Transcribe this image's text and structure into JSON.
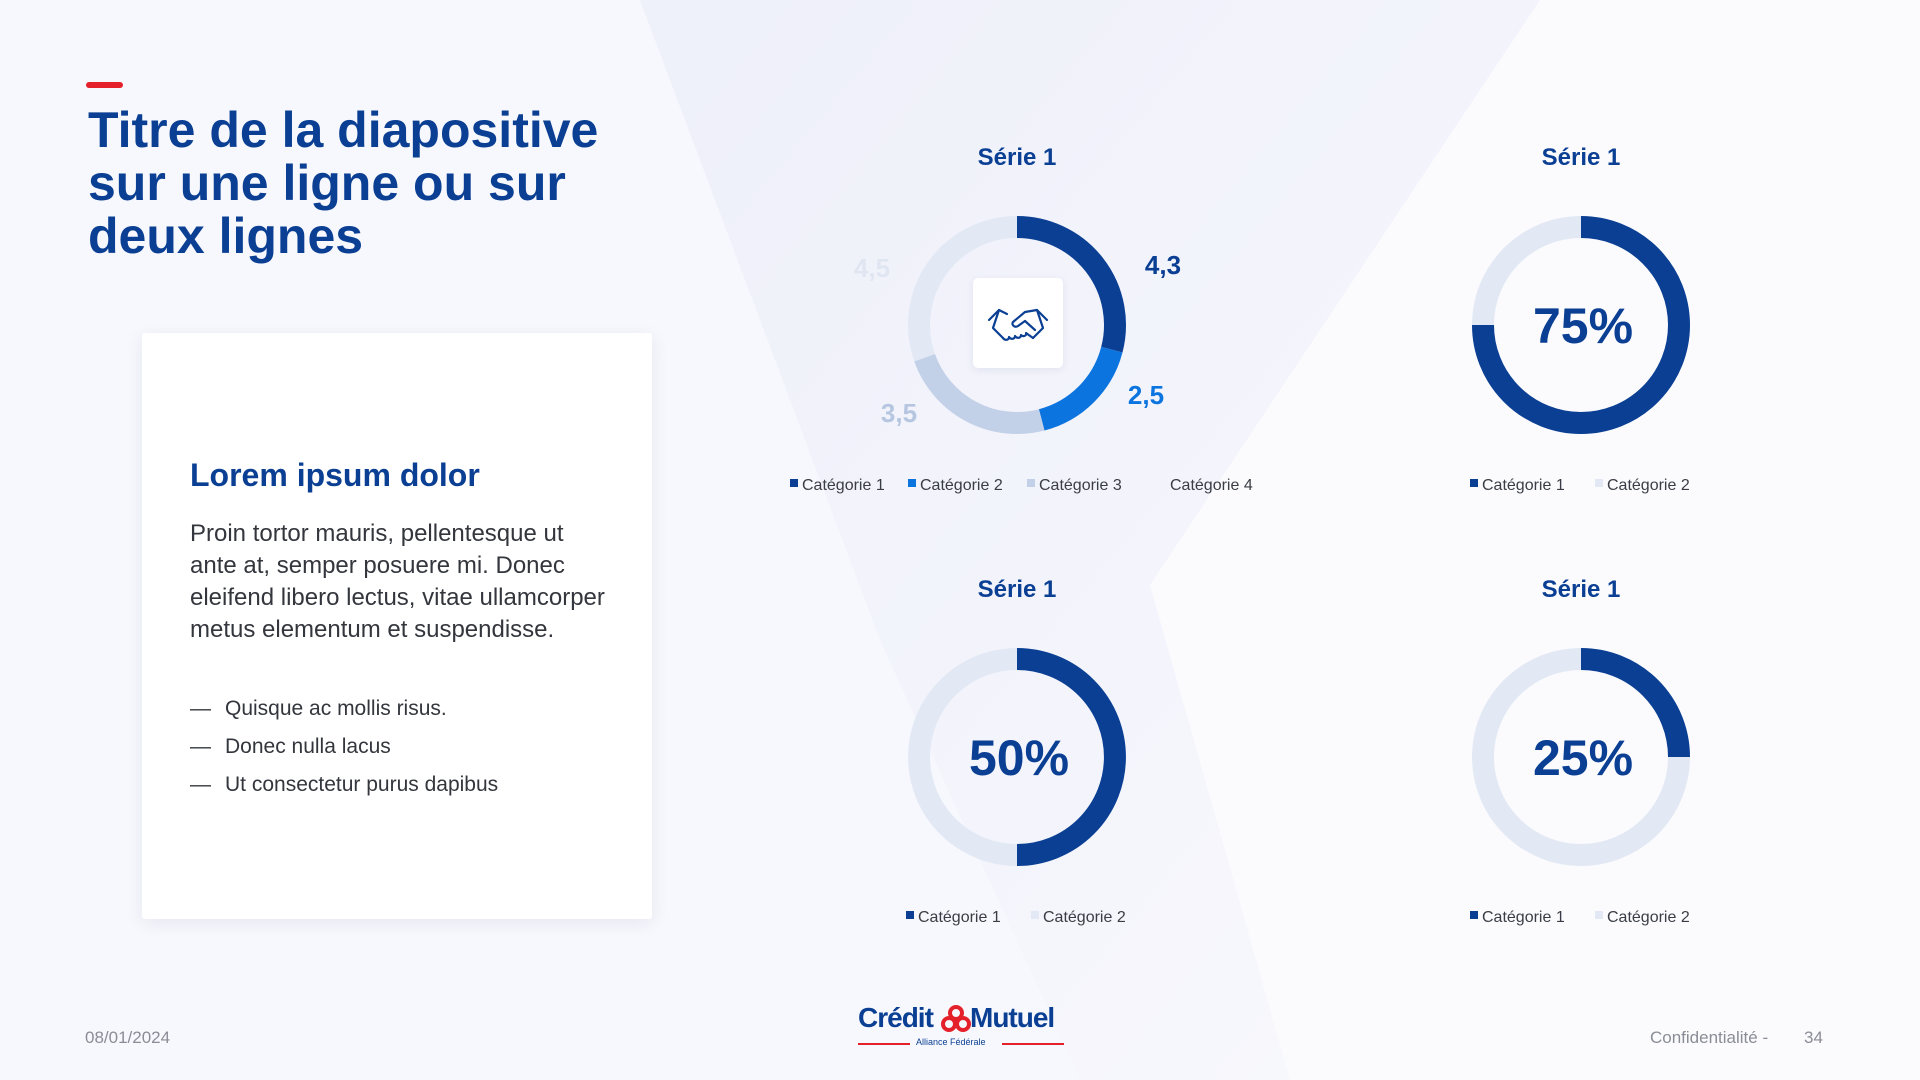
{
  "slide": {
    "title": "Titre de la diapositive sur une ligne ou sur deux lignes",
    "card": {
      "heading": "Lorem ipsum dolor",
      "body": "Proin tortor mauris, pellentesque ut ante at, semper posuere mi. Donec eleifend libero lectus, vitae ullamcorper metus elementum et suspendisse.",
      "bullets": [
        "Quisque ac mollis risus.",
        "Donec nulla lacus",
        "Ut consectetur purus dapibus"
      ]
    }
  },
  "footer": {
    "date": "08/01/2024",
    "confidentiality": "Confidentialité -",
    "page_number": "34",
    "logo": {
      "word1": "Crédit",
      "word2": "Mutuel",
      "subtitle": "Alliance Fédérale"
    }
  },
  "colors": {
    "dark_blue": "#0a3f93",
    "mid_blue": "#0b74de",
    "light_blue": "#c2d0e8",
    "track": "#e3e9f4",
    "accent_red": "#e4202b"
  },
  "icons": {
    "chart1_center": "handshake-icon"
  },
  "chart_data": [
    {
      "type": "donut",
      "title": "Série 1",
      "categories": [
        "Catégorie 1",
        "Catégorie 2",
        "Catégorie 3",
        "Catégorie 4"
      ],
      "series": [
        {
          "name": "Série 1",
          "values": [
            4.3,
            2.5,
            3.5,
            4.5
          ]
        }
      ],
      "data_labels": [
        "4,3",
        "2,5",
        "3,5",
        "4,5"
      ],
      "colors": [
        "#0a3f93",
        "#0b74de",
        "#c2d0e8",
        "#e3e9f4"
      ],
      "legend": "bottom"
    },
    {
      "type": "donut",
      "title": "Série 1",
      "categories": [
        "Catégorie 1",
        "Catégorie 2"
      ],
      "series": [
        {
          "name": "Série 1",
          "values": [
            75,
            25
          ]
        }
      ],
      "center_label": "75%",
      "colors": [
        "#0a3f93",
        "#e3e9f4"
      ],
      "legend": "bottom"
    },
    {
      "type": "donut",
      "title": "Série 1",
      "categories": [
        "Catégorie 1",
        "Catégorie 2"
      ],
      "series": [
        {
          "name": "Série 1",
          "values": [
            50,
            50
          ]
        }
      ],
      "center_label": "50%",
      "colors": [
        "#0a3f93",
        "#e3e9f4"
      ],
      "legend": "bottom"
    },
    {
      "type": "donut",
      "title": "Série 1",
      "categories": [
        "Catégorie 1",
        "Catégorie 2"
      ],
      "series": [
        {
          "name": "Série 1",
          "values": [
            25,
            75
          ]
        }
      ],
      "center_label": "25%",
      "colors": [
        "#0a3f93",
        "#e3e9f4"
      ],
      "legend": "bottom"
    }
  ]
}
